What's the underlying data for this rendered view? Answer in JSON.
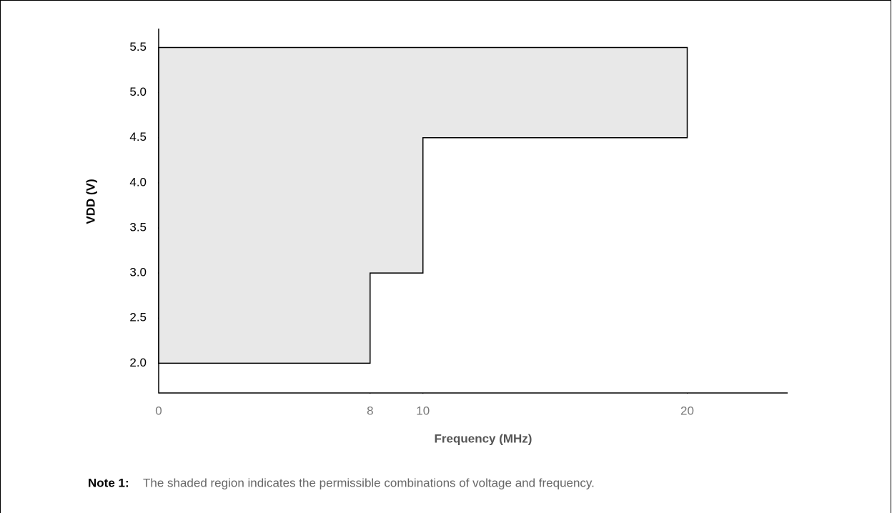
{
  "chart_data": {
    "type": "area",
    "x": [
      0,
      8,
      8,
      10,
      10,
      20,
      20,
      0
    ],
    "values": [
      2,
      2,
      3,
      3,
      4.5,
      4.5,
      5.5,
      5.5
    ],
    "color": "#e8e8e8",
    "xlabel": "Frequency (MHz)",
    "ylabel": "VDD (V)",
    "xlim": [
      0,
      23.8
    ],
    "xticks": [
      0,
      8,
      10,
      20
    ],
    "ylim": [
      1.67,
      5.71
    ],
    "yticks": [
      {
        "value": 2,
        "label": "2.0"
      },
      2.5,
      {
        "value": 3,
        "label": "3.0"
      },
      3.5,
      {
        "value": 4,
        "label": "4.0"
      },
      4.5,
      {
        "value": 5,
        "label": "5.0"
      },
      5.5
    ],
    "note_label": "Note 1:",
    "note": "The shaded region indicates the permissible combinations of voltage and frequency."
  }
}
